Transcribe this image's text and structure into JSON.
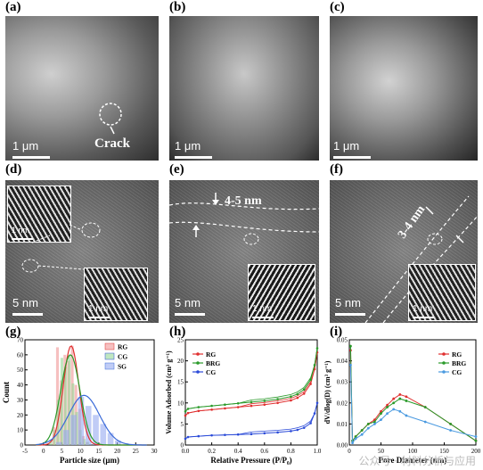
{
  "panels": {
    "a": {
      "label": "(a)",
      "scale": "1 μm",
      "annotation": "Crack"
    },
    "b": {
      "label": "(b)",
      "scale": "1 μm"
    },
    "c": {
      "label": "(c)",
      "scale": "1 μm"
    },
    "d": {
      "label": "(d)",
      "scale": "5 nm",
      "inset_scale_small": "1 nm",
      "inset_scale": "1 nm"
    },
    "e": {
      "label": "(e)",
      "scale": "5 nm",
      "annotation": "4-5 nm",
      "inset_scale": "1 nm"
    },
    "f": {
      "label": "(f)",
      "scale": "5 nm",
      "annotation": "3-4 nm",
      "inset_scale": "1 nm"
    },
    "g": {
      "label": "(g)"
    },
    "h": {
      "label": "(h)"
    },
    "i": {
      "label": "(i)"
    }
  },
  "watermark": "公众号 · 材料分析与应用",
  "colors": {
    "RG": "#e03030",
    "BRG": "#2a9a2a",
    "CG": "#2a4ad8",
    "SG": "#3a6ad8",
    "i_CG": "#4a9ae0"
  },
  "chart_data": [
    {
      "type": "bar",
      "panel": "g",
      "xlabel": "Particle size (μm)",
      "ylabel": "Count",
      "xlim": [
        -5,
        30
      ],
      "ylim": [
        0,
        70
      ],
      "xticks": [
        -5,
        0,
        5,
        10,
        15,
        20,
        25,
        30
      ],
      "yticks": [
        0,
        10,
        20,
        30,
        40,
        50,
        60,
        70
      ],
      "legend": [
        "RG",
        "CG",
        "SG"
      ],
      "legend_position": "top-right",
      "series": [
        {
          "name": "RG",
          "x": [
            3,
            4,
            5,
            6,
            7,
            8,
            9,
            10,
            11,
            12
          ],
          "values": [
            12,
            65,
            43,
            60,
            56,
            66,
            40,
            24,
            6,
            2
          ]
        },
        {
          "name": "CG",
          "x": [
            2,
            3,
            4,
            5,
            6,
            7,
            8,
            9,
            10,
            11,
            12
          ],
          "values": [
            3,
            10,
            30,
            58,
            52,
            60,
            41,
            22,
            10,
            4,
            2
          ]
        },
        {
          "name": "SG",
          "x": [
            4,
            6,
            8,
            10,
            12,
            14,
            16,
            18,
            20
          ],
          "values": [
            2,
            10,
            20,
            32,
            26,
            20,
            14,
            8,
            3
          ]
        }
      ],
      "fits": [
        {
          "name": "RG",
          "mean": 7.5,
          "sd": 2.1,
          "peak": 66
        },
        {
          "name": "CG",
          "mean": 7.3,
          "sd": 2.6,
          "peak": 60
        },
        {
          "name": "SG",
          "mean": 11.0,
          "sd": 4.2,
          "peak": 33
        }
      ]
    },
    {
      "type": "line",
      "panel": "h",
      "xlabel": "Relative Pressure (P/P₀)",
      "ylabel": "Volume Adsorbed (cm³ g⁻¹)",
      "xlim": [
        0,
        1.0
      ],
      "ylim": [
        0,
        25
      ],
      "xticks": [
        0.0,
        0.2,
        0.4,
        0.6,
        0.8,
        1.0
      ],
      "yticks": [
        0,
        5,
        10,
        15,
        20,
        25
      ],
      "legend": [
        "RG",
        "BRG",
        "CG"
      ],
      "legend_position": "top-left",
      "series": [
        {
          "name": "RG",
          "x": [
            0.0,
            0.02,
            0.1,
            0.2,
            0.3,
            0.4,
            0.5,
            0.6,
            0.7,
            0.8,
            0.85,
            0.9,
            0.95,
            0.98,
            1.0
          ],
          "values": [
            7.0,
            7.6,
            8.1,
            8.4,
            8.7,
            9.0,
            9.3,
            9.6,
            10.0,
            10.6,
            11.2,
            12.2,
            14.5,
            18.0,
            22.0
          ]
        },
        {
          "name": "BRG",
          "x": [
            0.0,
            0.02,
            0.1,
            0.2,
            0.3,
            0.4,
            0.5,
            0.6,
            0.7,
            0.8,
            0.85,
            0.9,
            0.95,
            0.98,
            1.0
          ],
          "values": [
            8.0,
            8.6,
            9.0,
            9.3,
            9.6,
            9.9,
            10.2,
            10.5,
            10.9,
            11.5,
            12.1,
            13.2,
            15.5,
            19.0,
            23.0
          ]
        },
        {
          "name": "CG",
          "x": [
            0.0,
            0.02,
            0.1,
            0.2,
            0.3,
            0.4,
            0.5,
            0.6,
            0.7,
            0.8,
            0.85,
            0.9,
            0.95,
            0.98,
            1.0
          ],
          "values": [
            1.5,
            1.9,
            2.1,
            2.3,
            2.4,
            2.5,
            2.6,
            2.8,
            3.0,
            3.3,
            3.6,
            4.1,
            5.2,
            7.5,
            10.0
          ]
        }
      ]
    },
    {
      "type": "line",
      "panel": "i",
      "xlabel": "Pore Diameter (nm)",
      "ylabel": "dV/dlog(D) (cm³ g⁻¹)",
      "xlim": [
        0,
        200
      ],
      "ylim": [
        0,
        0.05
      ],
      "xticks": [
        0,
        50,
        100,
        150,
        200
      ],
      "yticks": [
        0.0,
        0.01,
        0.02,
        0.03,
        0.04,
        0.05
      ],
      "legend": [
        "RG",
        "BRG",
        "CG"
      ],
      "legend_position": "top-right",
      "series": [
        {
          "name": "RG",
          "x": [
            2,
            5,
            10,
            20,
            30,
            40,
            50,
            60,
            70,
            80,
            90,
            120,
            160,
            200
          ],
          "values": [
            0.045,
            0.002,
            0.004,
            0.007,
            0.01,
            0.012,
            0.016,
            0.019,
            0.022,
            0.024,
            0.023,
            0.018,
            0.01,
            0.002
          ]
        },
        {
          "name": "BRG",
          "x": [
            2,
            5,
            10,
            20,
            30,
            40,
            50,
            60,
            70,
            80,
            90,
            120,
            160,
            200
          ],
          "values": [
            0.047,
            0.002,
            0.004,
            0.007,
            0.01,
            0.011,
            0.015,
            0.018,
            0.02,
            0.022,
            0.021,
            0.018,
            0.01,
            0.002
          ]
        },
        {
          "name": "CG",
          "x": [
            2,
            5,
            10,
            20,
            30,
            40,
            50,
            60,
            70,
            80,
            90,
            120,
            160,
            200
          ],
          "values": [
            0.038,
            0.001,
            0.003,
            0.005,
            0.008,
            0.01,
            0.012,
            0.015,
            0.017,
            0.016,
            0.014,
            0.011,
            0.007,
            0.004
          ]
        }
      ]
    }
  ]
}
